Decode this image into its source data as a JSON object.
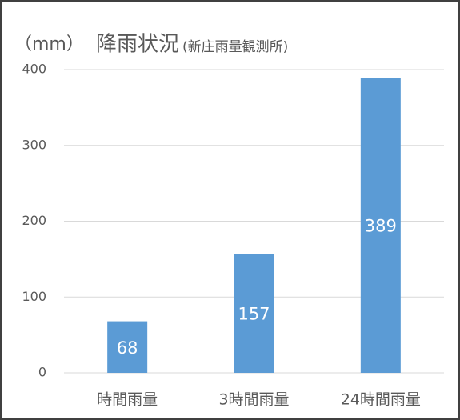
{
  "chart_data": {
    "type": "bar",
    "y_label": "（mm）",
    "title": "降雨状況",
    "subtitle": "(新庄雨量観測所)",
    "categories": [
      "時間雨量",
      "3時間雨量",
      "24時間雨量"
    ],
    "values": [
      68,
      157,
      389
    ],
    "color": "#5b9bd5",
    "ylim": [
      0,
      400
    ],
    "yticks": [
      0,
      100,
      200,
      300,
      400
    ],
    "grid": true
  }
}
